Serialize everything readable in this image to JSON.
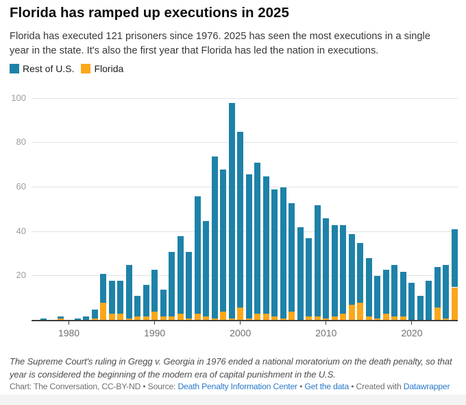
{
  "title": "Florida has ramped up executions in 2025",
  "description": "Florida has executed 121 prisoners since 1976. 2025 has seen the most executions in a single year in the state. It's also the first year that Florida has led the nation in executions.",
  "colors": {
    "rest_of_us": "#1e82a8",
    "florida": "#faa71a",
    "link_blue": "#2779c9"
  },
  "legend": [
    {
      "label": "Rest of U.S.",
      "color": "#1e82a8"
    },
    {
      "label": "Florida",
      "color": "#faa71a"
    }
  ],
  "chart_data": {
    "type": "bar",
    "stacked": true,
    "x": [
      1976,
      1977,
      1978,
      1979,
      1980,
      1981,
      1982,
      1983,
      1984,
      1985,
      1986,
      1987,
      1988,
      1989,
      1990,
      1991,
      1992,
      1993,
      1994,
      1995,
      1996,
      1997,
      1998,
      1999,
      2000,
      2001,
      2002,
      2003,
      2004,
      2005,
      2006,
      2007,
      2008,
      2009,
      2010,
      2011,
      2012,
      2013,
      2014,
      2015,
      2016,
      2017,
      2018,
      2019,
      2020,
      2021,
      2022,
      2023,
      2024,
      2025
    ],
    "series": [
      {
        "name": "Florida",
        "color": "#faa71a",
        "values": [
          0,
          0,
          0,
          1,
          0,
          0,
          0,
          1,
          8,
          3,
          3,
          1,
          2,
          2,
          4,
          2,
          2,
          3,
          1,
          3,
          2,
          1,
          4,
          1,
          6,
          1,
          3,
          3,
          2,
          1,
          4,
          0,
          2,
          2,
          1,
          2,
          3,
          7,
          8,
          2,
          1,
          3,
          2,
          2,
          0,
          0,
          0,
          6,
          1,
          15
        ]
      },
      {
        "name": "Rest of U.S.",
        "color": "#1e82a8",
        "values": [
          0,
          1,
          0,
          1,
          0,
          1,
          2,
          4,
          13,
          15,
          15,
          24,
          9,
          14,
          19,
          12,
          29,
          35,
          30,
          53,
          43,
          73,
          64,
          97,
          79,
          65,
          68,
          62,
          57,
          59,
          49,
          42,
          35,
          50,
          45,
          41,
          40,
          32,
          27,
          26,
          19,
          20,
          23,
          20,
          17,
          11,
          18,
          18,
          24,
          26
        ]
      }
    ],
    "title": "Florida has ramped up executions in 2025",
    "xlabel": "",
    "ylabel": "",
    "ylim": [
      0,
      100
    ],
    "yticks": [
      20,
      40,
      60,
      80,
      100
    ],
    "xticks": [
      1980,
      1990,
      2000,
      2010,
      2020
    ],
    "grid": true,
    "legend_position": "top-left"
  },
  "footnote": "The Supreme Court's ruling in Gregg v. Georgia in 1976 ended a national moratorium on the death penalty, so that year is considered the beginning of the modern era of capital punishment in the U.S.",
  "credit": {
    "parts": [
      {
        "text": "Chart: The Conversation, CC-BY-ND",
        "link": false
      },
      {
        "text": " • ",
        "link": false
      },
      {
        "text": "Source: ",
        "link": false
      },
      {
        "text": "Death Penalty Information Center",
        "link": true
      },
      {
        "text": " • ",
        "link": false
      },
      {
        "text": "Get the data",
        "link": true
      },
      {
        "text": " • ",
        "link": false
      },
      {
        "text": "Created with ",
        "link": false
      },
      {
        "text": "Datawrapper",
        "link": true
      }
    ]
  }
}
